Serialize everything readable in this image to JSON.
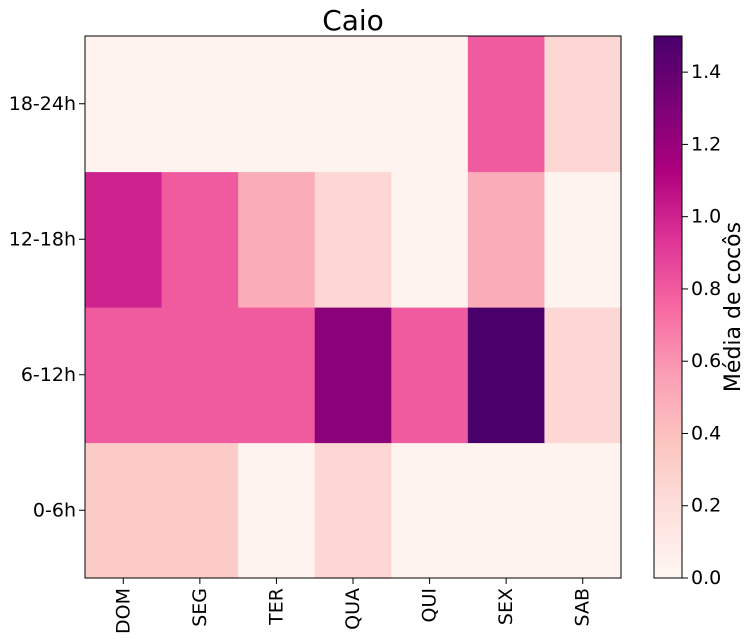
{
  "chart_data": {
    "type": "heatmap",
    "title": "Caio",
    "x_categories": [
      "DOM",
      "SEG",
      "TER",
      "QUA",
      "QUI",
      "SEX",
      "SAB"
    ],
    "y_categories": [
      "0-6h",
      "6-12h",
      "12-18h",
      "18-24h"
    ],
    "values": [
      [
        0.33,
        0.33,
        0.03,
        0.25,
        0.03,
        0.03,
        0.03
      ],
      [
        0.8,
        0.8,
        0.8,
        1.25,
        0.8,
        1.5,
        0.25
      ],
      [
        1.0,
        0.8,
        0.5,
        0.25,
        0.03,
        0.5,
        0.03
      ],
      [
        0.03,
        0.03,
        0.03,
        0.03,
        0.03,
        0.8,
        0.25
      ]
    ],
    "colorbar": {
      "label": "Média de cocôs",
      "min": 0.0,
      "max": 1.5,
      "ticks": [
        "0.0",
        "0.2",
        "0.4",
        "0.6",
        "0.8",
        "1.0",
        "1.2",
        "1.4"
      ]
    },
    "colormap": "RdPu",
    "colors": [
      "#fff7f3",
      "#fde0dd",
      "#fcc5c0",
      "#fa9fb5",
      "#f768a1",
      "#dd3497",
      "#ae017e",
      "#7a0177",
      "#49006a"
    ]
  }
}
